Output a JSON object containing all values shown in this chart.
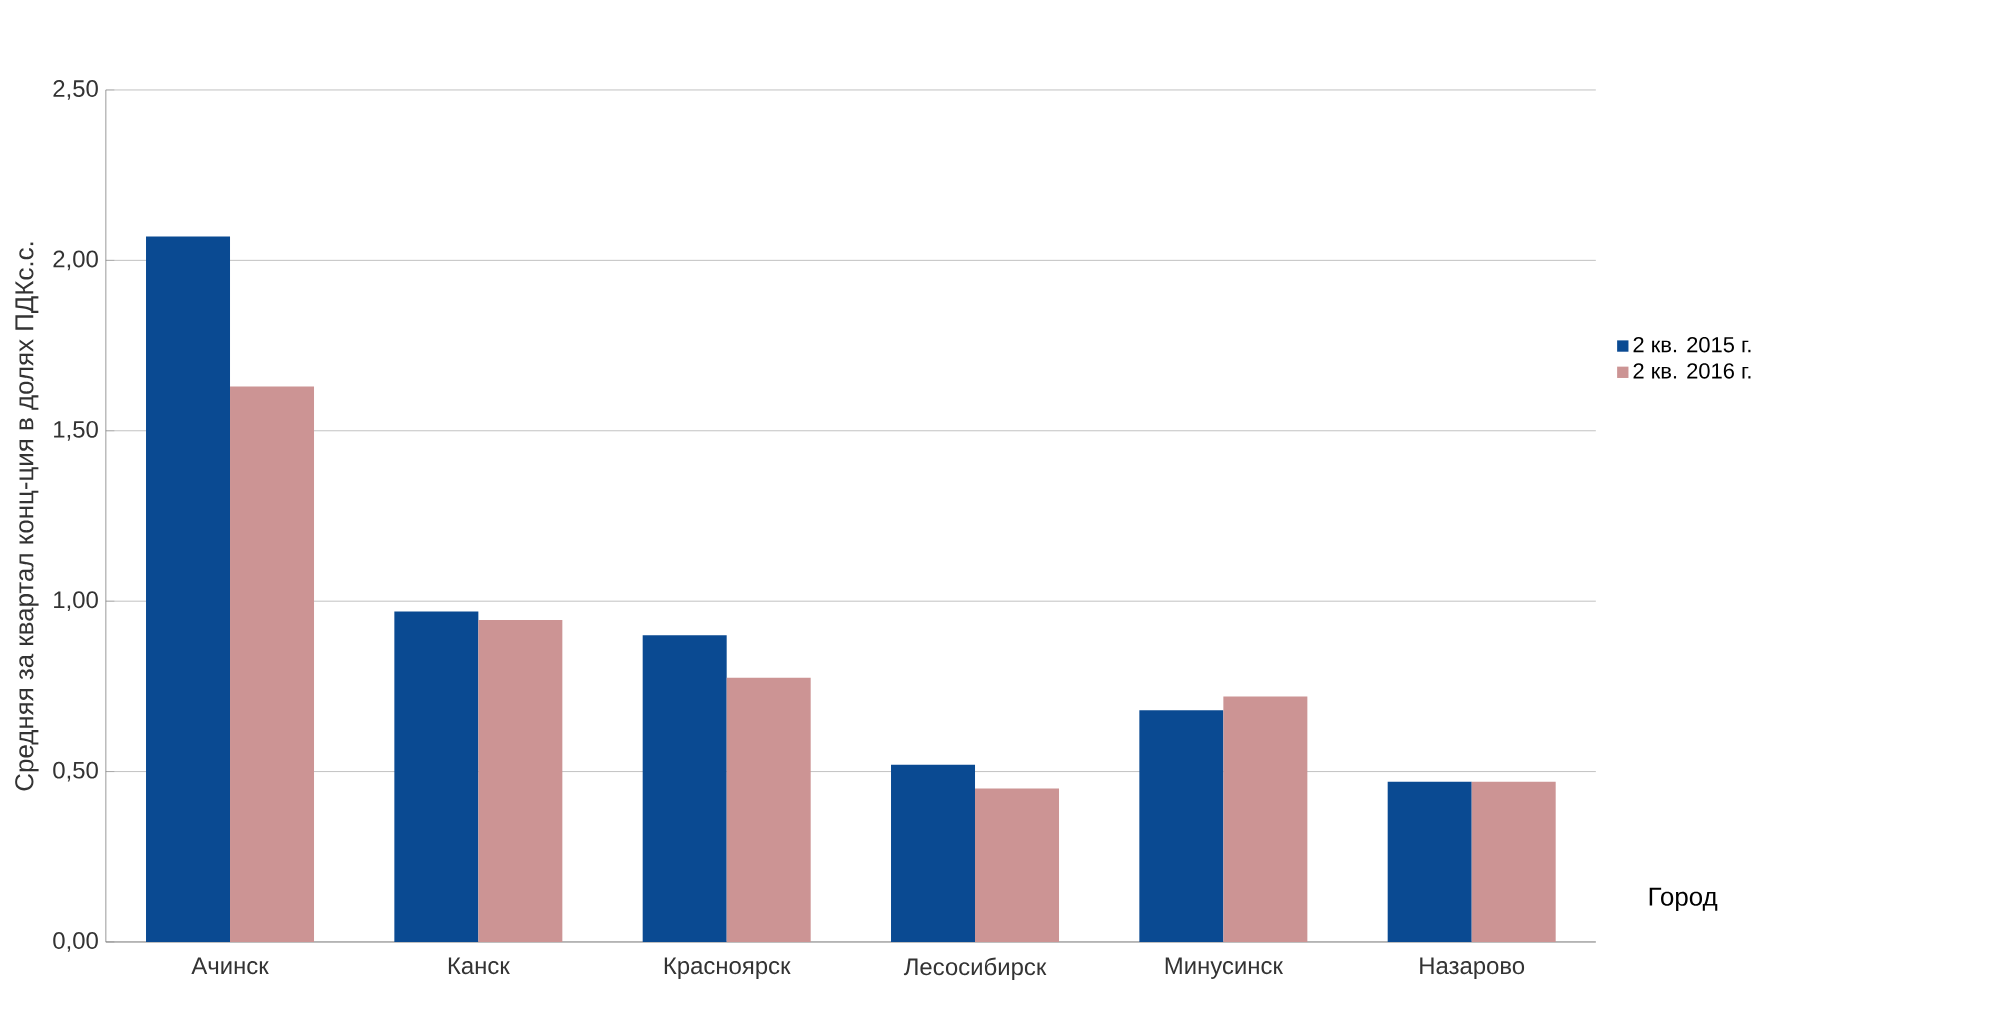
{
  "chart_data": {
    "type": "bar",
    "ylabel": "Средняя за квартал конц-ция в долях ПДКс.с.",
    "xlabel": "Город",
    "categories": [
      "Ачинск",
      "Канск",
      "Красноярск",
      "Лесосибирск",
      "Минусинск",
      "Назарово"
    ],
    "series": [
      {
        "name": "2 кв. 2015 г.",
        "color": "#0a4a92",
        "values": [
          2.07,
          0.97,
          0.9,
          0.52,
          0.68,
          0.47
        ]
      },
      {
        "name": "2 кв. 2016 г.",
        "color": "#cc9494",
        "values": [
          1.63,
          0.945,
          0.775,
          0.45,
          0.72,
          0.47
        ]
      }
    ],
    "ylim": [
      0,
      2.5
    ],
    "yticks": [
      {
        "value": 0,
        "label": "0,00"
      },
      {
        "value": 0.5,
        "label": "0,50"
      },
      {
        "value": 1,
        "label": "1,00"
      },
      {
        "value": 1.5,
        "label": "1,50"
      },
      {
        "value": 2,
        "label": "2,00"
      },
      {
        "value": 2.5,
        "label": "2,50"
      }
    ],
    "grid": "y",
    "legend": "right"
  }
}
